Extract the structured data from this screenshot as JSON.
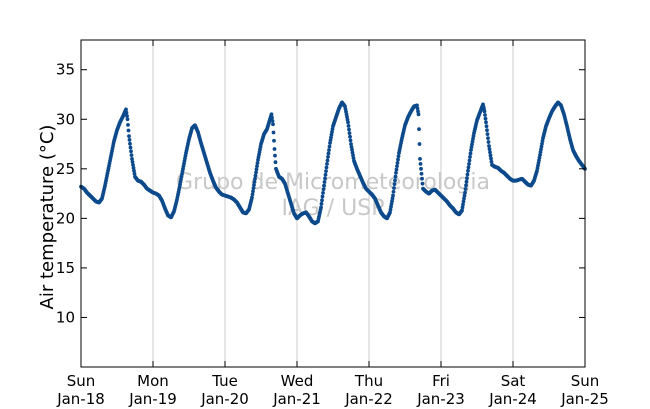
{
  "chart_data": {
    "type": "scatter",
    "ylabel": "Air temperature (°C)",
    "xlabel": "",
    "ylim": [
      5,
      38
    ],
    "xlim": [
      "2014-01-18",
      "2014-01-25"
    ],
    "y_ticks": [
      10,
      15,
      20,
      25,
      30,
      35
    ],
    "x_ticks": [
      {
        "weekday": "Sun",
        "date": "Jan-18"
      },
      {
        "weekday": "Mon",
        "date": "Jan-19"
      },
      {
        "weekday": "Tue",
        "date": "Jan-20"
      },
      {
        "weekday": "Wed",
        "date": "Jan-21"
      },
      {
        "weekday": "Thu",
        "date": "Jan-22"
      },
      {
        "weekday": "Fri",
        "date": "Jan-23"
      },
      {
        "weekday": "Sat",
        "date": "Jan-24"
      },
      {
        "weekday": "Sun",
        "date": "Jan-25"
      }
    ],
    "grid": "vertical",
    "marker_color": "#0d4a8c",
    "watermark": [
      "Grupo de Micrometeorologia",
      "IAG / USP"
    ],
    "x_unit": "time of day (hh:mm)",
    "days": [
      {
        "date": "Jan-18",
        "points": [
          [
            "00:00",
            23.2
          ],
          [
            "01:00",
            23.0
          ],
          [
            "02:00",
            22.6
          ],
          [
            "03:00",
            22.3
          ],
          [
            "04:00",
            22.0
          ],
          [
            "05:00",
            21.7
          ],
          [
            "06:00",
            21.6
          ],
          [
            "07:00",
            22.0
          ],
          [
            "08:00",
            23.3
          ],
          [
            "09:00",
            24.8
          ],
          [
            "10:00",
            26.3
          ],
          [
            "11:00",
            27.8
          ],
          [
            "12:00",
            28.9
          ],
          [
            "13:00",
            29.7
          ],
          [
            "14:00",
            30.3
          ],
          [
            "15:00",
            31.0
          ],
          [
            "15:30",
            30.0
          ],
          [
            "16:00",
            28.3
          ],
          [
            "17:00",
            26.0
          ],
          [
            "18:00",
            24.2
          ],
          [
            "19:00",
            23.8
          ],
          [
            "20:00",
            23.7
          ],
          [
            "21:00",
            23.4
          ],
          [
            "22:00",
            23.0
          ],
          [
            "23:00",
            22.8
          ]
        ]
      },
      {
        "date": "Jan-19",
        "points": [
          [
            "00:00",
            22.6
          ],
          [
            "01:00",
            22.5
          ],
          [
            "02:00",
            22.3
          ],
          [
            "03:00",
            21.8
          ],
          [
            "04:00",
            21.0
          ],
          [
            "05:00",
            20.3
          ],
          [
            "06:00",
            20.1
          ],
          [
            "07:00",
            20.7
          ],
          [
            "08:00",
            21.9
          ],
          [
            "09:00",
            23.4
          ],
          [
            "10:00",
            25.0
          ],
          [
            "11:00",
            26.6
          ],
          [
            "12:00",
            28.0
          ],
          [
            "13:00",
            29.1
          ],
          [
            "14:00",
            29.4
          ],
          [
            "15:00",
            28.7
          ],
          [
            "16:00",
            27.6
          ],
          [
            "17:00",
            26.6
          ],
          [
            "18:00",
            25.6
          ],
          [
            "19:00",
            24.6
          ],
          [
            "20:00",
            23.8
          ],
          [
            "21:00",
            23.1
          ],
          [
            "22:00",
            22.7
          ],
          [
            "23:00",
            22.4
          ]
        ]
      },
      {
        "date": "Jan-20",
        "points": [
          [
            "00:00",
            22.3
          ],
          [
            "01:00",
            22.2
          ],
          [
            "02:00",
            22.1
          ],
          [
            "03:00",
            21.9
          ],
          [
            "04:00",
            21.6
          ],
          [
            "05:00",
            21.1
          ],
          [
            "06:00",
            20.6
          ],
          [
            "07:00",
            20.5
          ],
          [
            "08:00",
            20.9
          ],
          [
            "09:00",
            22.1
          ],
          [
            "10:00",
            24.0
          ],
          [
            "11:00",
            25.9
          ],
          [
            "12:00",
            27.5
          ],
          [
            "13:00",
            28.5
          ],
          [
            "14:00",
            29.0
          ],
          [
            "15:00",
            30.0
          ],
          [
            "15:30",
            30.5
          ],
          [
            "16:00",
            29.5
          ],
          [
            "16:30",
            27.0
          ],
          [
            "17:00",
            25.0
          ],
          [
            "18:00",
            24.2
          ],
          [
            "19:00",
            24.0
          ],
          [
            "20:00",
            23.5
          ],
          [
            "21:00",
            22.5
          ],
          [
            "22:00",
            21.5
          ],
          [
            "23:00",
            20.5
          ]
        ]
      },
      {
        "date": "Jan-21",
        "points": [
          [
            "00:00",
            20.0
          ],
          [
            "01:00",
            20.3
          ],
          [
            "02:00",
            20.5
          ],
          [
            "03:00",
            20.6
          ],
          [
            "04:00",
            20.2
          ],
          [
            "05:00",
            19.7
          ],
          [
            "06:00",
            19.5
          ],
          [
            "07:00",
            19.7
          ],
          [
            "08:00",
            21.1
          ],
          [
            "09:00",
            23.3
          ],
          [
            "10:00",
            25.5
          ],
          [
            "11:00",
            27.6
          ],
          [
            "12:00",
            29.3
          ],
          [
            "13:00",
            30.2
          ],
          [
            "14:00",
            31.1
          ],
          [
            "15:00",
            31.7
          ],
          [
            "16:00",
            31.3
          ],
          [
            "17:00",
            29.7
          ],
          [
            "18:00",
            27.5
          ],
          [
            "19:00",
            25.8
          ],
          [
            "20:00",
            25.0
          ],
          [
            "21:00",
            24.3
          ],
          [
            "22:00",
            23.6
          ],
          [
            "23:00",
            23.0
          ]
        ]
      },
      {
        "date": "Jan-22",
        "points": [
          [
            "00:00",
            22.7
          ],
          [
            "01:00",
            22.4
          ],
          [
            "02:00",
            22.0
          ],
          [
            "03:00",
            21.3
          ],
          [
            "04:00",
            20.6
          ],
          [
            "05:00",
            20.2
          ],
          [
            "06:00",
            20.0
          ],
          [
            "07:00",
            20.6
          ],
          [
            "08:00",
            22.3
          ],
          [
            "09:00",
            24.6
          ],
          [
            "10:00",
            26.6
          ],
          [
            "11:00",
            28.1
          ],
          [
            "12:00",
            29.4
          ],
          [
            "13:00",
            30.2
          ],
          [
            "14:00",
            30.8
          ],
          [
            "15:00",
            31.3
          ],
          [
            "16:00",
            31.4
          ],
          [
            "16:30",
            30.5
          ],
          [
            "17:00",
            26.0
          ],
          [
            "18:00",
            23.0
          ],
          [
            "19:00",
            22.7
          ],
          [
            "20:00",
            22.5
          ],
          [
            "21:00",
            22.8
          ],
          [
            "22:00",
            22.9
          ],
          [
            "23:00",
            22.6
          ]
        ]
      },
      {
        "date": "Jan-23",
        "points": [
          [
            "00:00",
            22.3
          ],
          [
            "01:00",
            22.0
          ],
          [
            "02:00",
            21.7
          ],
          [
            "03:00",
            21.3
          ],
          [
            "04:00",
            21.0
          ],
          [
            "05:00",
            20.6
          ],
          [
            "06:00",
            20.4
          ],
          [
            "07:00",
            20.8
          ],
          [
            "08:00",
            22.6
          ],
          [
            "09:00",
            24.8
          ],
          [
            "10:00",
            26.9
          ],
          [
            "11:00",
            28.6
          ],
          [
            "12:00",
            29.9
          ],
          [
            "13:00",
            30.7
          ],
          [
            "14:00",
            31.5
          ],
          [
            "14:30",
            30.8
          ],
          [
            "15:00",
            29.7
          ],
          [
            "16:00",
            27.3
          ],
          [
            "17:00",
            25.4
          ],
          [
            "18:00",
            25.2
          ],
          [
            "19:00",
            25.1
          ],
          [
            "20:00",
            24.8
          ],
          [
            "21:00",
            24.6
          ],
          [
            "22:00",
            24.3
          ],
          [
            "23:00",
            24.0
          ]
        ]
      },
      {
        "date": "Jan-24",
        "points": [
          [
            "00:00",
            23.8
          ],
          [
            "01:00",
            23.8
          ],
          [
            "02:00",
            23.9
          ],
          [
            "03:00",
            24.0
          ],
          [
            "04:00",
            23.7
          ],
          [
            "05:00",
            23.4
          ],
          [
            "06:00",
            23.3
          ],
          [
            "07:00",
            23.8
          ],
          [
            "08:00",
            24.8
          ],
          [
            "09:00",
            26.4
          ],
          [
            "10:00",
            28.1
          ],
          [
            "11:00",
            29.3
          ],
          [
            "12:00",
            30.1
          ],
          [
            "13:00",
            30.8
          ],
          [
            "14:00",
            31.3
          ],
          [
            "15:00",
            31.7
          ],
          [
            "16:00",
            31.4
          ],
          [
            "17:00",
            30.5
          ],
          [
            "18:00",
            29.3
          ],
          [
            "19:00",
            28.0
          ],
          [
            "20:00",
            26.9
          ],
          [
            "21:00",
            26.3
          ],
          [
            "22:00",
            25.8
          ],
          [
            "23:00",
            25.4
          ],
          [
            "23:59",
            25.0
          ]
        ]
      }
    ]
  }
}
